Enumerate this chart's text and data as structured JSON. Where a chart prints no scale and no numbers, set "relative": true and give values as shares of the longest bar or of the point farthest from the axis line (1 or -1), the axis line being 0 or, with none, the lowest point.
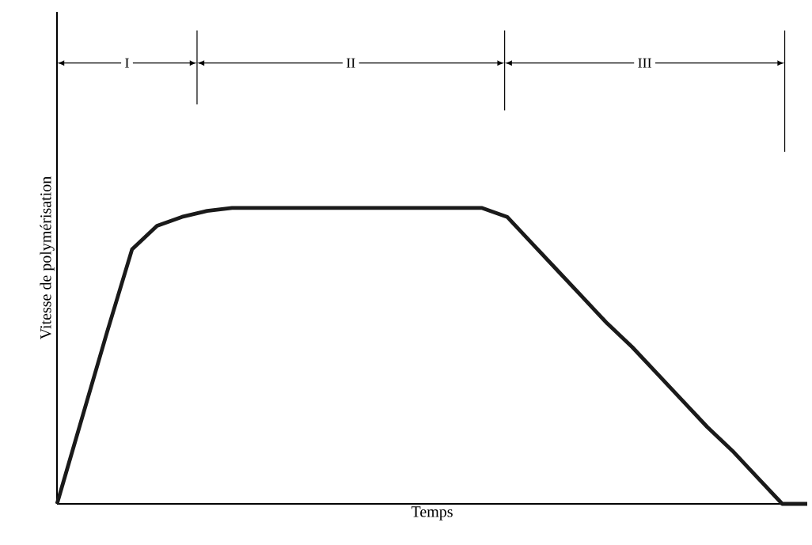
{
  "chart_data": {
    "type": "line",
    "relative": true,
    "xlabel": "Temps",
    "ylabel": "Vitesse de polymérisation",
    "categories": [
      null,
      null,
      null,
      null,
      null,
      null,
      null,
      null,
      null,
      null,
      null,
      null,
      null,
      null,
      null,
      null,
      null,
      null,
      null,
      null,
      null,
      null,
      null,
      null,
      null,
      null,
      null,
      null,
      null,
      null,
      null
    ],
    "series": [
      {
        "color": "#1a1a1a",
        "values": [
          0,
          0.29,
          0.58,
          0.86,
          0.94,
          0.97,
          0.99,
          1,
          1,
          1,
          1,
          1,
          1,
          1,
          1,
          1,
          1,
          1,
          0.97,
          0.88,
          0.79,
          0.7,
          0.61,
          0.53,
          0.44,
          0.35,
          0.26,
          0.18,
          0.09,
          0,
          0
        ]
      }
    ],
    "annotations": [
      "I",
      "II",
      "III"
    ],
    "marker": "none",
    "line_style": "solid"
  }
}
